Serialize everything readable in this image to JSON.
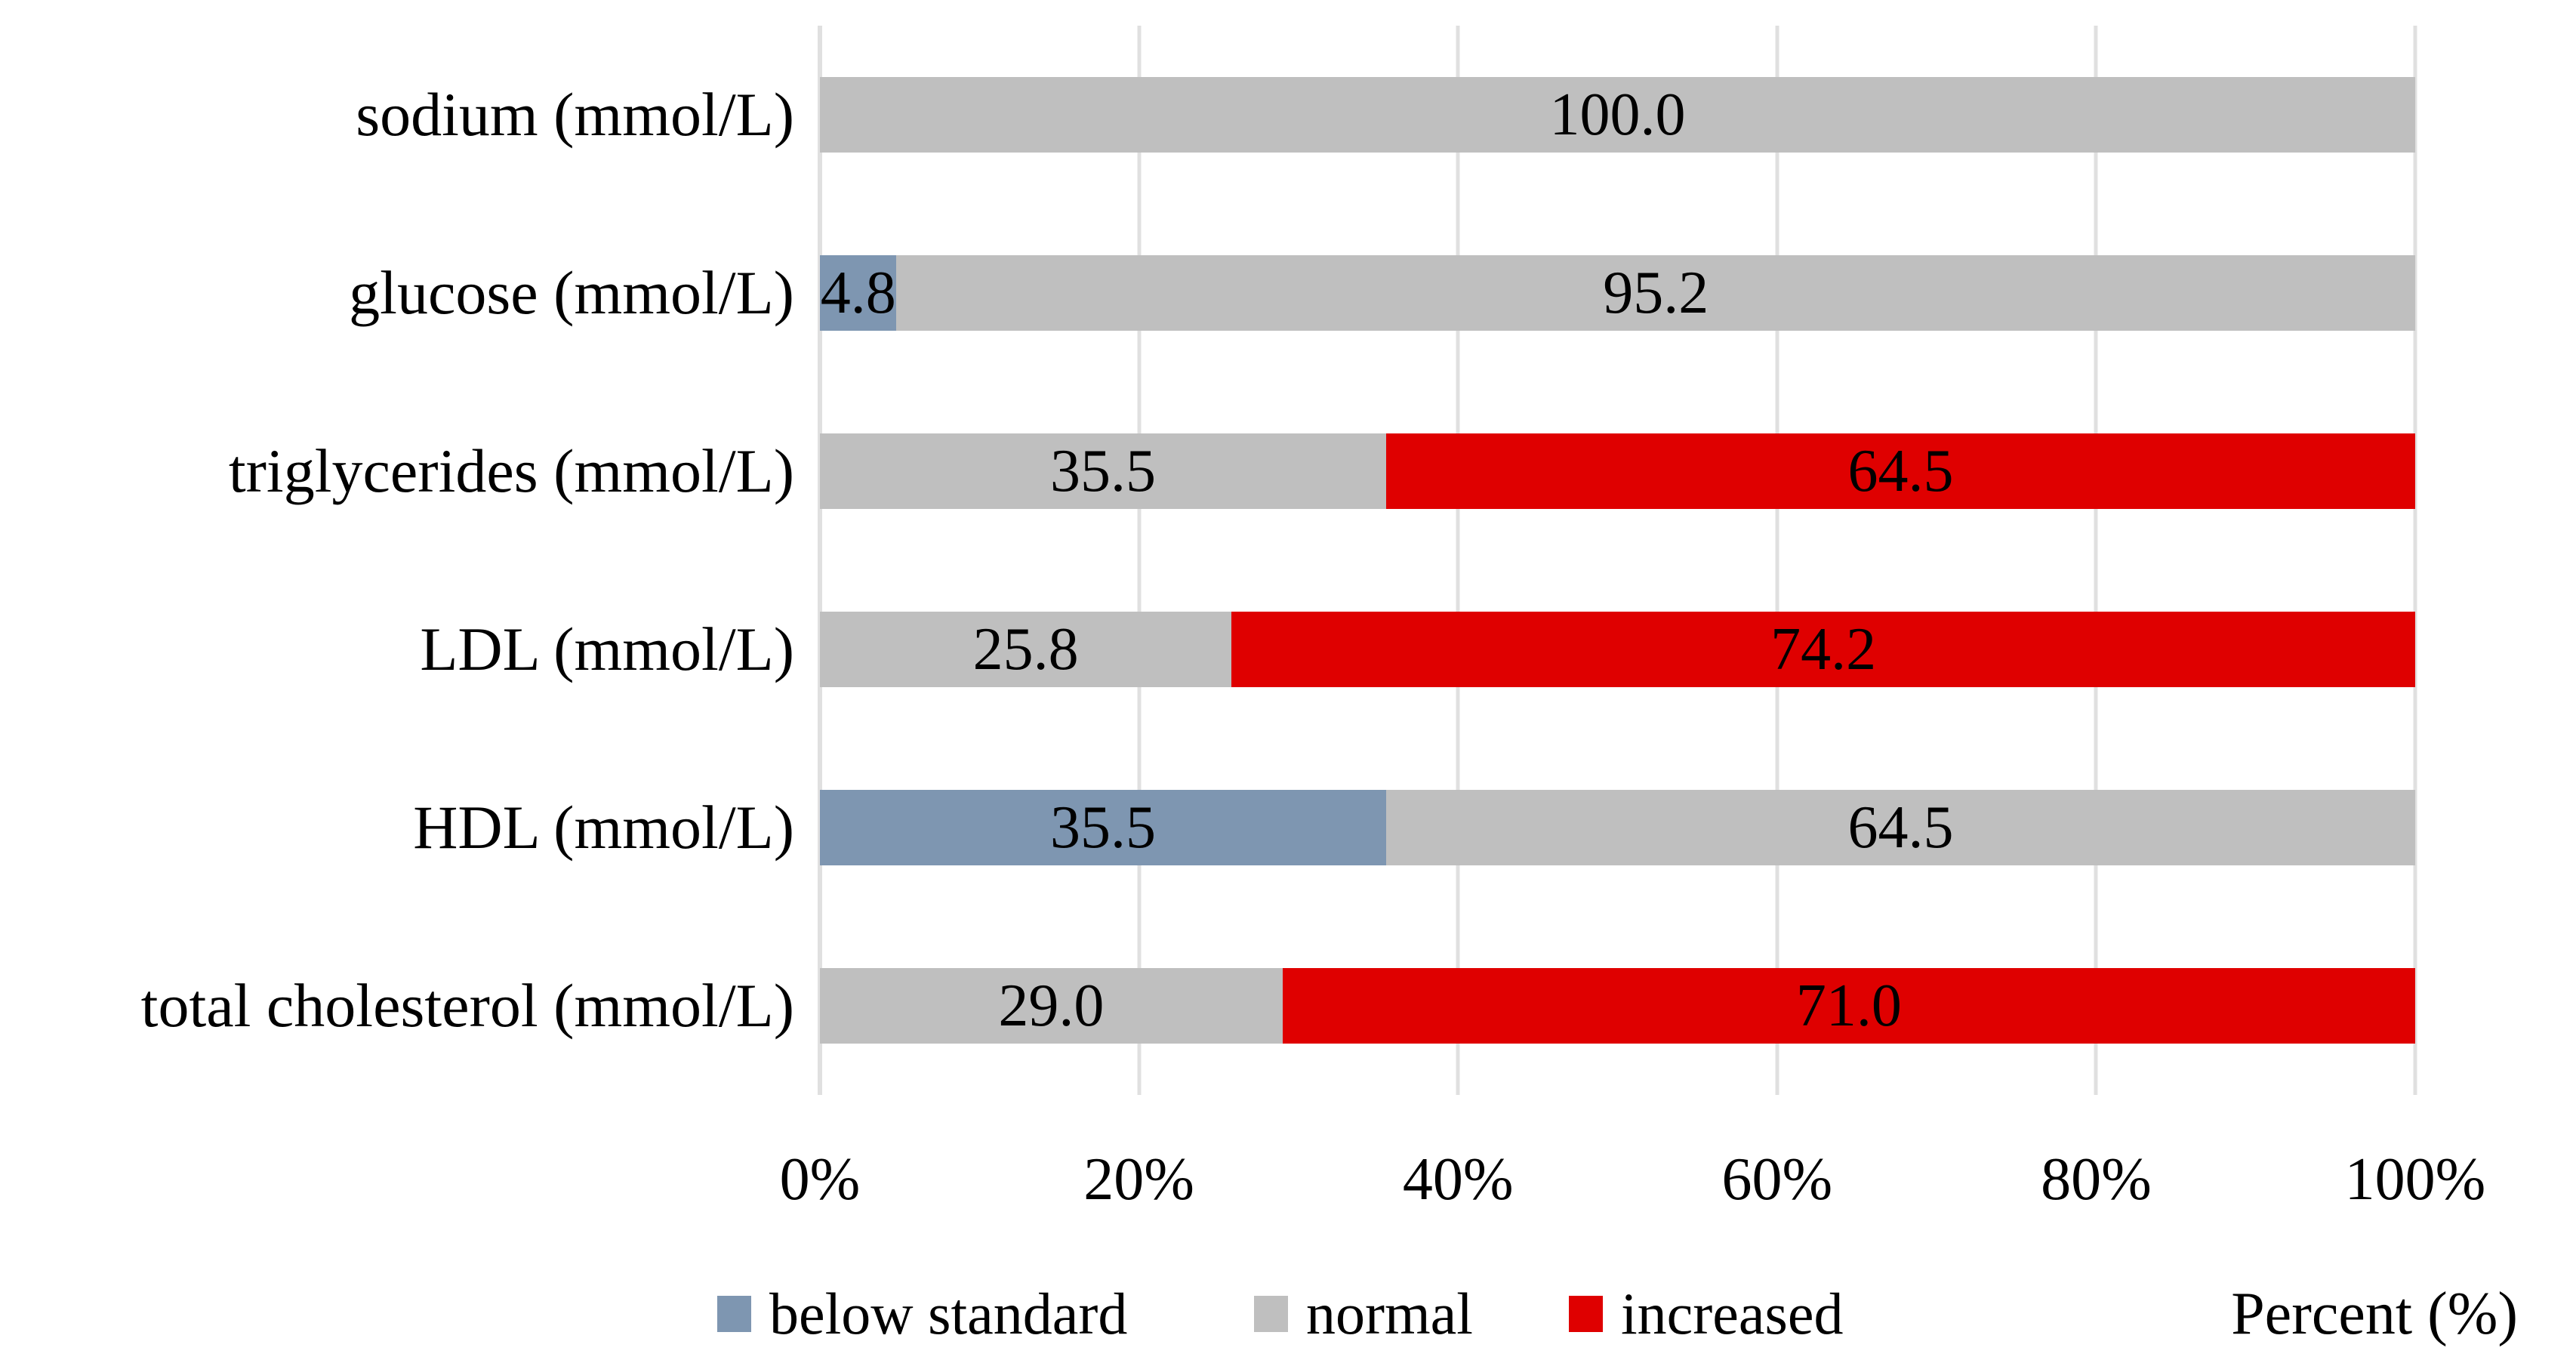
{
  "chart_data": {
    "type": "bar",
    "orientation": "horizontal",
    "stacked": true,
    "title": "",
    "xlabel": "Percent (%)",
    "ylabel": "",
    "xlim": [
      0,
      100
    ],
    "grid": "vertical",
    "legend_position": "bottom",
    "x_ticks": [
      "0%",
      "20%",
      "40%",
      "60%",
      "80%",
      "100%"
    ],
    "categories": [
      "sodium (mmol/L)",
      "glucose (mmol/L)",
      "triglycerides (mmol/L)",
      "LDL (mmol/L)",
      "HDL (mmol/L)",
      "total cholesterol (mmol/L)"
    ],
    "series": [
      {
        "name": "below standard",
        "color": "#7E96B1",
        "values": [
          0,
          4.8,
          0,
          0,
          35.5,
          0
        ],
        "labels": [
          "",
          "4.8",
          "",
          "",
          "35.5",
          ""
        ]
      },
      {
        "name": "normal",
        "color": "#BFBFBF",
        "values": [
          100.0,
          95.2,
          35.5,
          25.8,
          64.5,
          29.0
        ],
        "labels": [
          "100.0",
          "95.2",
          "35.5",
          "25.8",
          "64.5",
          "29.0"
        ]
      },
      {
        "name": "increased",
        "color": "#DF0000",
        "values": [
          0,
          0,
          64.5,
          74.2,
          0,
          71.0
        ],
        "labels": [
          "",
          "",
          "64.5",
          "74.2",
          "",
          "71.0"
        ]
      }
    ],
    "value_label_color": "#000000",
    "gridline_color": "#E0E0E0"
  }
}
